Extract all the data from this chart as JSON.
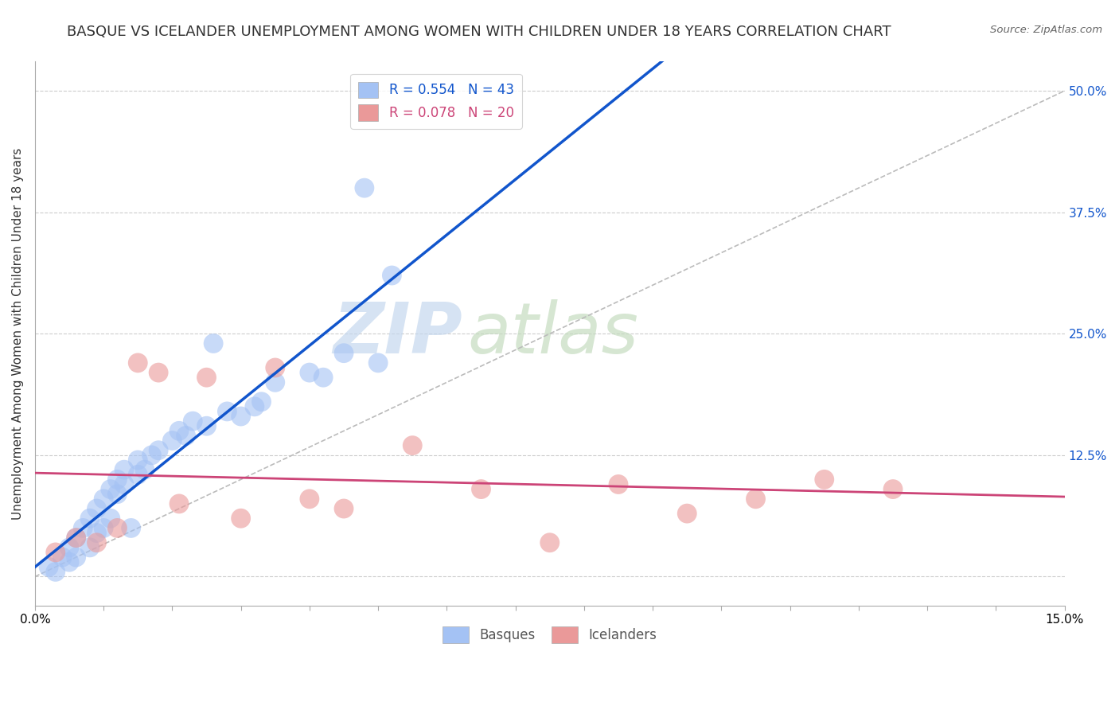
{
  "title": "BASQUE VS ICELANDER UNEMPLOYMENT AMONG WOMEN WITH CHILDREN UNDER 18 YEARS CORRELATION CHART",
  "source": "Source: ZipAtlas.com",
  "ylabel": "Unemployment Among Women with Children Under 18 years",
  "xlim": [
    0.0,
    15.0
  ],
  "ylim": [
    -3.0,
    53.0
  ],
  "legend_r1": "R = 0.554",
  "legend_n1": "N = 43",
  "legend_r2": "R = 0.078",
  "legend_n2": "N = 20",
  "blue_color": "#a4c2f4",
  "pink_color": "#ea9999",
  "blue_line_color": "#1155cc",
  "pink_line_color": "#cc4477",
  "title_fontsize": 13,
  "axis_label_fontsize": 11,
  "tick_label_fontsize": 11,
  "basque_x": [
    0.2,
    0.3,
    0.4,
    0.5,
    0.5,
    0.6,
    0.6,
    0.7,
    0.8,
    0.8,
    0.9,
    0.9,
    1.0,
    1.0,
    1.1,
    1.1,
    1.2,
    1.2,
    1.3,
    1.3,
    1.4,
    1.5,
    1.5,
    1.6,
    1.7,
    1.8,
    2.0,
    2.1,
    2.2,
    2.3,
    2.5,
    2.6,
    2.8,
    3.0,
    3.2,
    3.3,
    3.5,
    4.0,
    4.2,
    4.5,
    4.8,
    5.0,
    5.2
  ],
  "basque_y": [
    1.0,
    0.5,
    2.0,
    3.0,
    1.5,
    4.0,
    2.0,
    5.0,
    6.0,
    3.0,
    7.0,
    4.5,
    8.0,
    5.0,
    9.0,
    6.0,
    8.5,
    10.0,
    9.5,
    11.0,
    5.0,
    10.5,
    12.0,
    11.0,
    12.5,
    13.0,
    14.0,
    15.0,
    14.5,
    16.0,
    15.5,
    24.0,
    17.0,
    16.5,
    17.5,
    18.0,
    20.0,
    21.0,
    20.5,
    23.0,
    40.0,
    22.0,
    31.0
  ],
  "icelander_x": [
    0.3,
    0.6,
    0.9,
    1.2,
    1.5,
    1.8,
    2.1,
    2.5,
    3.0,
    3.5,
    4.0,
    4.5,
    5.5,
    6.5,
    7.5,
    8.5,
    9.5,
    10.5,
    11.5,
    12.5
  ],
  "icelander_y": [
    2.5,
    4.0,
    3.5,
    5.0,
    22.0,
    21.0,
    7.5,
    20.5,
    6.0,
    21.5,
    8.0,
    7.0,
    13.5,
    9.0,
    3.5,
    9.5,
    6.5,
    8.0,
    10.0,
    9.0
  ],
  "bg_color": "#ffffff",
  "grid_color": "#cccccc",
  "diag_color": "#bbbbbb",
  "watermark_zip_color": "#c5d5ea",
  "watermark_atlas_color": "#c5d5c0"
}
